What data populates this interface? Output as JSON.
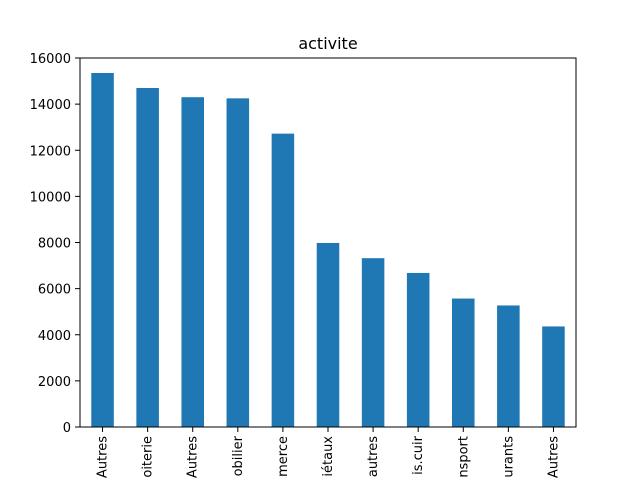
{
  "colors": {
    "bar": "#1f77b4",
    "axis": "#000000",
    "background": "#ffffff"
  },
  "chart_data": {
    "type": "bar",
    "title": "activite",
    "xlabel": "",
    "ylabel": "",
    "categories": [
      "Autres",
      "oiterie",
      "Autres",
      "obilier",
      "merce",
      "iétaux",
      "autres",
      "is.cuir",
      "nsport",
      "urants",
      "Autres"
    ],
    "values": [
      15350,
      14700,
      14300,
      14250,
      12720,
      7980,
      7320,
      6680,
      5570,
      5270,
      4360
    ],
    "ylim": [
      0,
      16000
    ],
    "yticks": [
      0,
      2000,
      4000,
      6000,
      8000,
      10000,
      12000,
      14000,
      16000
    ],
    "grid": false,
    "legend": "none"
  }
}
